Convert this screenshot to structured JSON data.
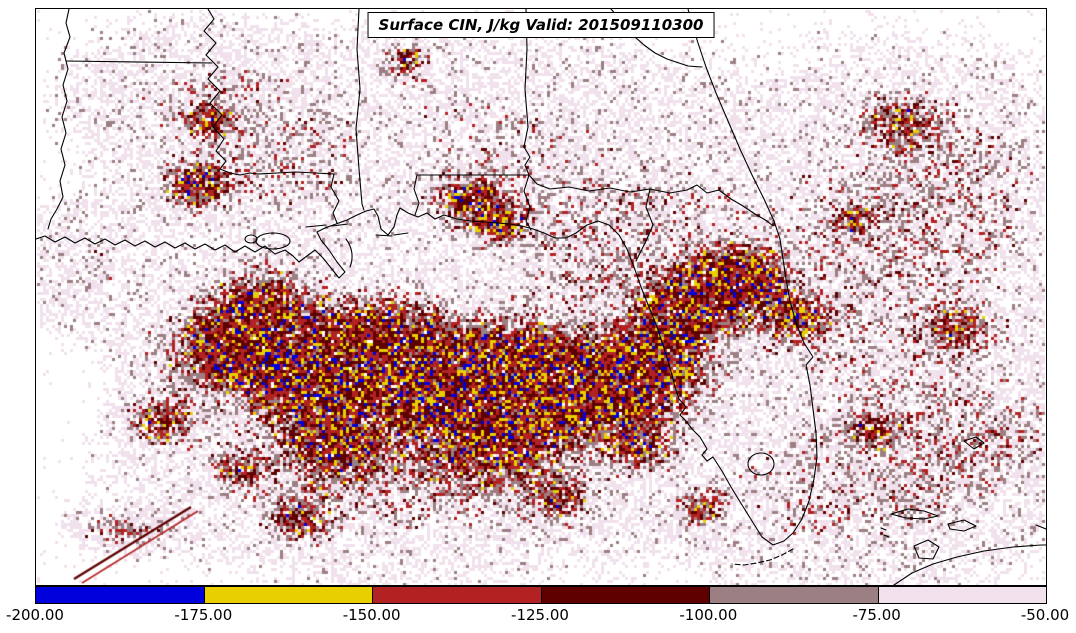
{
  "figure": {
    "title": "Surface CIN, J/kg Valid: 201509110300"
  },
  "chart_data": {
    "type": "heatmap",
    "title": "Surface CIN, J/kg Valid: 201509110300",
    "variable": "Surface CIN",
    "units": "J/kg",
    "valid_time": "201509110300",
    "map_region": "Southeastern United States and Gulf of Mexico (Louisiana, Mississippi, Alabama, Georgia, Florida shown)",
    "legend_position": "bottom",
    "colorbar": {
      "orientation": "horizontal",
      "range": [
        -200,
        -50
      ],
      "levels": [
        -200,
        -175,
        -150,
        -125,
        -100,
        -75,
        -50
      ],
      "tick_labels": [
        "-200.00",
        "-175.00",
        "-150.00",
        "-125.00",
        "-100.00",
        "-75.00",
        "-50.00"
      ],
      "bins": [
        {
          "from": -200,
          "to": -175,
          "color": "#0000dd"
        },
        {
          "from": -175,
          "to": -150,
          "color": "#e8d000"
        },
        {
          "from": -150,
          "to": -125,
          "color": "#b22222"
        },
        {
          "from": -125,
          "to": -100,
          "color": "#5e0000"
        },
        {
          "from": -100,
          "to": -75,
          "color": "#9c7f82"
        },
        {
          "from": -75,
          "to": -50,
          "color": "#f0e1ed"
        }
      ]
    },
    "colors": {
      "background": "#ffffff",
      "coastlines": "#000000"
    }
  }
}
